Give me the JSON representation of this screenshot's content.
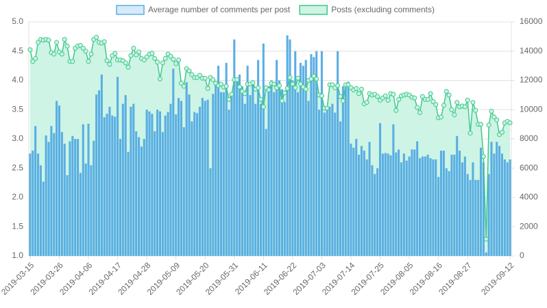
{
  "chart_data": {
    "type": "bar-line",
    "legend": "top",
    "categories": [
      "2019-03-15",
      null,
      null,
      null,
      null,
      null,
      null,
      null,
      null,
      null,
      null,
      "2019-03-26",
      null,
      null,
      null,
      null,
      null,
      null,
      null,
      null,
      null,
      null,
      "2019-04-06",
      null,
      null,
      null,
      null,
      null,
      null,
      null,
      null,
      null,
      null,
      "2019-04-17",
      null,
      null,
      null,
      null,
      null,
      null,
      null,
      null,
      null,
      null,
      "2019-04-28",
      null,
      null,
      null,
      null,
      null,
      null,
      null,
      null,
      null,
      null,
      "2019-05-09",
      null,
      null,
      null,
      null,
      null,
      null,
      null,
      null,
      null,
      null,
      "2019-05-20",
      null,
      null,
      null,
      null,
      null,
      null,
      null,
      null,
      null,
      null,
      "2019-05-31",
      null,
      null,
      null,
      null,
      null,
      null,
      null,
      null,
      null,
      null,
      "2019-06-11",
      null,
      null,
      null,
      null,
      null,
      null,
      null,
      null,
      null,
      null,
      "2019-06-22",
      null,
      null,
      null,
      null,
      null,
      null,
      null,
      null,
      null,
      null,
      "2019-07-03",
      null,
      null,
      null,
      null,
      null,
      null,
      null,
      null,
      null,
      null,
      "2019-07-14",
      null,
      null,
      null,
      null,
      null,
      null,
      null,
      null,
      null,
      null,
      "2019-07-25",
      null,
      null,
      null,
      null,
      null,
      null,
      null,
      null,
      null,
      null,
      "2019-08-05",
      null,
      null,
      null,
      null,
      null,
      null,
      null,
      null,
      null,
      null,
      "2019-08-16",
      null,
      null,
      null,
      null,
      null,
      null,
      null,
      null,
      null,
      null,
      "2019-08-27",
      null,
      null,
      null,
      null,
      null,
      null,
      null,
      null,
      null,
      null,
      null,
      null,
      null,
      null,
      null,
      "2019-09-12"
    ],
    "series": [
      {
        "name": "Average number of comments per post",
        "type": "bar",
        "axis": "y",
        "color": "#5aaee3",
        "legend_fill": "#d6eaf8",
        "legend_border": "#5aaee3",
        "values": [
          2.75,
          2.8,
          3.22,
          2.75,
          2.55,
          2.27,
          3.06,
          2.95,
          3.22,
          3.1,
          3.65,
          3.57,
          3.12,
          2.92,
          2.38,
          2.96,
          3.05,
          3.0,
          3.0,
          2.42,
          3.25,
          2.58,
          3.26,
          2.55,
          2.97,
          3.76,
          3.83,
          4.1,
          3.37,
          3.43,
          3.55,
          3.4,
          3.38,
          4.06,
          3.0,
          3.6,
          3.75,
          2.78,
          3.55,
          3.6,
          3.13,
          3.03,
          2.87,
          3.0,
          3.5,
          3.47,
          3.43,
          3.13,
          3.5,
          3.47,
          3.12,
          3.4,
          3.46,
          3.6,
          4.2,
          3.42,
          3.7,
          3.65,
          3.2,
          3.97,
          3.76,
          3.3,
          3.46,
          3.44,
          3.55,
          3.7,
          3.65,
          3.67,
          2.5,
          3.77,
          3.95,
          4.25,
          3.8,
          3.8,
          4.3,
          3.5,
          3.8,
          4.7,
          4.0,
          4.1,
          3.9,
          3.6,
          4.25,
          3.75,
          4.0,
          3.6,
          4.35,
          3.6,
          4.63,
          3.17,
          3.9,
          4.0,
          3.8,
          4.35,
          4.0,
          3.85,
          3.63,
          4.77,
          4.7,
          4.0,
          4.5,
          3.8,
          4.3,
          4.25,
          4.35,
          3.65,
          4.45,
          4.4,
          4.5,
          3.5,
          4.5,
          3.45,
          3.5,
          3.55,
          3.6,
          3.45,
          4.5,
          3.3,
          3.9,
          3.9,
          3.98,
          2.92,
          2.85,
          3.0,
          2.73,
          2.88,
          2.8,
          2.65,
          2.95,
          2.55,
          2.4,
          2.5,
          3.27,
          2.75,
          2.76,
          2.75,
          2.72,
          3.25,
          2.77,
          2.82,
          2.6,
          2.75,
          2.63,
          2.7,
          2.82,
          2.82,
          2.96,
          2.67,
          2.7,
          2.7,
          2.73,
          2.67,
          2.65,
          2.65,
          2.35,
          2.8,
          2.8,
          2.5,
          2.45,
          2.73,
          2.73,
          3.05,
          2.8,
          2.6,
          2.7,
          2.4,
          2.3,
          2.6,
          2.3,
          2.3,
          2.85,
          2.6,
          1.06,
          2.4,
          2.95,
          2.75,
          2.95,
          2.88,
          2.75,
          2.65,
          2.6,
          2.65
        ]
      },
      {
        "name": "Posts (excluding comments)",
        "type": "line",
        "axis": "y2",
        "color": "#3cc98a",
        "fill_color": "#cdf4e4",
        "legend_fill": "#cdf4e4",
        "legend_border": "#3cc98a",
        "values": [
          14100,
          13300,
          13500,
          14600,
          14800,
          14750,
          14800,
          14750,
          13900,
          13800,
          14600,
          13950,
          13800,
          14800,
          14350,
          13300,
          13300,
          14200,
          14350,
          14400,
          14200,
          14000,
          13300,
          13800,
          14800,
          14950,
          14600,
          14550,
          14650,
          13350,
          13100,
          13700,
          13850,
          13400,
          13400,
          13350,
          13200,
          12900,
          13700,
          14200,
          13750,
          13950,
          13500,
          13400,
          13600,
          13800,
          13850,
          13500,
          13250,
          12100,
          13200,
          13500,
          13800,
          13650,
          13450,
          13150,
          13400,
          11800,
          11600,
          12800,
          12650,
          12400,
          12200,
          12200,
          12350,
          12150,
          12150,
          11450,
          12200,
          12050,
          11800,
          11650,
          11750,
          11550,
          11600,
          10700,
          11050,
          12050,
          12050,
          11550,
          11250,
          11100,
          11750,
          11750,
          11850,
          11400,
          11500,
          10700,
          10200,
          11500,
          11350,
          11800,
          11750,
          11500,
          11650,
          10600,
          11150,
          11450,
          12200,
          11750,
          11500,
          12150,
          11750,
          11550,
          11400,
          12000,
          12100,
          12300,
          12100,
          11000,
          10950,
          10100,
          10100,
          11700,
          11700,
          11500,
          11650,
          10900,
          10600,
          11700,
          11700,
          11500,
          11350,
          11450,
          11100,
          11400,
          10400,
          10500,
          11100,
          11000,
          11050,
          10900,
          10650,
          10800,
          10950,
          10650,
          11100,
          11050,
          9950,
          10700,
          10950,
          11000,
          11050,
          11000,
          10850,
          10800,
          10150,
          9800,
          10900,
          10700,
          10700,
          11100,
          10550,
          10350,
          9450,
          9500,
          10300,
          11250,
          11000,
          10000,
          9650,
          10500,
          10200,
          10250,
          10200,
          10650,
          8400,
          10500,
          9950,
          9000,
          9000,
          6800,
          1150,
          8950,
          9900,
          9500,
          9300,
          8300,
          8450,
          9100,
          9200,
          9100
        ]
      }
    ],
    "ylim": [
      1,
      5
    ],
    "yticks": [
      {
        "value": 1,
        "label": "1.0"
      },
      {
        "value": 1.5,
        "label": "1.5"
      },
      {
        "value": 2,
        "label": "2.0"
      },
      {
        "value": 2.5,
        "label": "2.5"
      },
      {
        "value": 3,
        "label": "3.0"
      },
      {
        "value": 3.5,
        "label": "3.5"
      },
      {
        "value": 4,
        "label": "4.0"
      },
      {
        "value": 4.5,
        "label": "4.5"
      },
      {
        "value": 5,
        "label": "5.0"
      }
    ],
    "y2lim": [
      0,
      16000
    ],
    "y2ticks": [
      0,
      2000,
      4000,
      6000,
      8000,
      10000,
      12000,
      14000,
      16000
    ],
    "grid": true
  }
}
